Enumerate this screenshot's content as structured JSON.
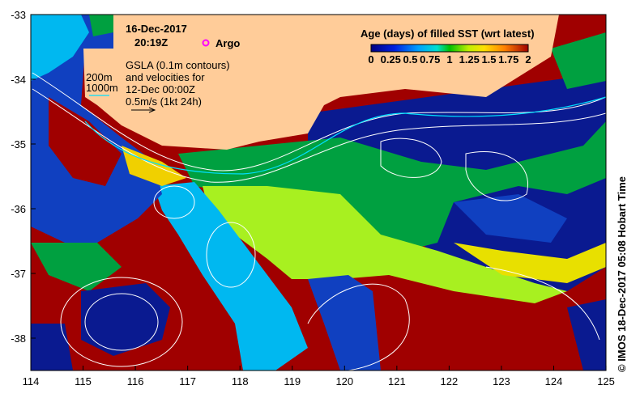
{
  "map": {
    "date": "16-Dec-2017",
    "time": "20:19Z",
    "argo_label": "Argo",
    "gsla_lines": [
      "GSLA (0.1m contours)",
      "and velocities for",
      "12-Dec 00:00Z",
      "0.5m/s (1kt 24h)"
    ],
    "depth_labels": [
      "200m",
      "1000m"
    ],
    "x_ticks": [
      "114",
      "115",
      "116",
      "117",
      "118",
      "119",
      "120",
      "121",
      "122",
      "123",
      "124",
      "125"
    ],
    "y_ticks": [
      "-33",
      "-34",
      "-35",
      "-36",
      "-37",
      "-38"
    ],
    "credit": "© IMOS 18-Dec-2017 05:08 Hobart Time"
  },
  "colorbar": {
    "title": "Age (days) of filled SST (wrt latest)",
    "ticks": [
      "0",
      "0.25",
      "0.5",
      "0.75",
      "1",
      "1.25",
      "1.5",
      "1.75",
      "2"
    ],
    "range": [
      0,
      2
    ]
  },
  "colors": {
    "land": "#ffcc99",
    "argo": "#ff00ff",
    "contour": "#ffffff"
  }
}
